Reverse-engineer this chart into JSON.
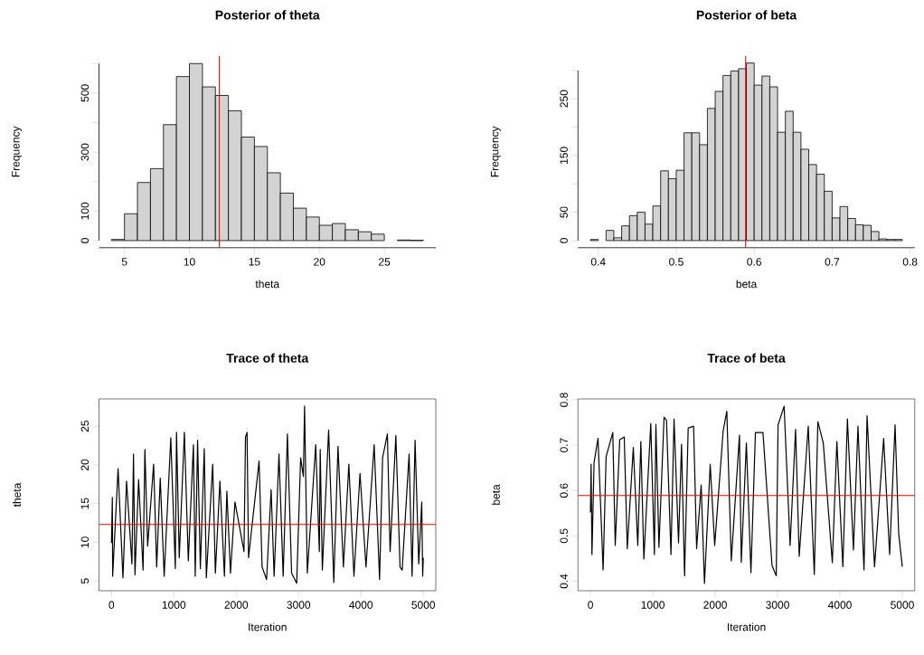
{
  "chart_data": [
    {
      "type": "histogram",
      "title": "Posterior of theta",
      "xlabel": "theta",
      "ylabel": "Frequency",
      "bins": [
        4,
        5,
        6,
        7,
        8,
        9,
        10,
        11,
        12,
        13,
        14,
        15,
        16,
        17,
        18,
        19,
        20,
        21,
        22,
        23,
        24,
        25,
        26,
        27,
        28
      ],
      "values": [
        4,
        91,
        197,
        244,
        393,
        556,
        600,
        521,
        492,
        440,
        351,
        319,
        230,
        161,
        110,
        80,
        52,
        58,
        37,
        30,
        22,
        0,
        2,
        1
      ],
      "color": "#d3d3d3",
      "xlim": [
        3.04,
        28.96
      ],
      "ylim": [
        -24,
        626
      ],
      "xticks": [
        5,
        10,
        15,
        20,
        25
      ],
      "yticks": [
        0,
        100,
        {
          "value": 200,
          "label": null
        },
        300,
        {
          "value": 400,
          "label": null
        },
        500,
        {
          "value": 600,
          "label": null
        }
      ],
      "ref_lines": [
        {
          "axis": "x",
          "value": 12.3,
          "color": "#ff0000"
        }
      ]
    },
    {
      "type": "histogram",
      "title": "Posterior of beta",
      "xlabel": "beta",
      "ylabel": "Frequency",
      "bins": [
        0.39,
        0.4,
        0.41,
        0.42,
        0.43,
        0.44,
        0.45,
        0.46,
        0.47,
        0.48,
        0.49,
        0.5,
        0.51,
        0.52,
        0.53,
        0.54,
        0.55,
        0.56,
        0.57,
        0.58,
        0.59,
        0.6,
        0.61,
        0.62,
        0.63,
        0.64,
        0.65,
        0.66,
        0.67,
        0.68,
        0.69,
        0.7,
        0.71,
        0.72,
        0.73,
        0.74,
        0.75,
        0.76,
        0.77,
        0.78,
        0.79
      ],
      "values": [
        2,
        0,
        18,
        5,
        26,
        44,
        50,
        29,
        61,
        123,
        109,
        124,
        190,
        190,
        169,
        233,
        263,
        291,
        299,
        303,
        313,
        274,
        290,
        271,
        191,
        228,
        191,
        161,
        134,
        117,
        87,
        40,
        60,
        39,
        28,
        27,
        16,
        3,
        2,
        2
      ],
      "color": "#d3d3d3",
      "xlim": [
        0.374,
        0.806
      ],
      "ylim": [
        -12.5,
        325.5
      ],
      "xticks": [
        0.4,
        0.5,
        0.6,
        0.7,
        0.8
      ],
      "yticks": [
        0,
        50,
        {
          "value": 100,
          "label": null
        },
        150,
        {
          "value": 200,
          "label": null
        },
        250,
        {
          "value": 300,
          "label": null
        }
      ],
      "ref_lines": [
        {
          "axis": "x",
          "value": 0.589,
          "color": "#ff0000"
        }
      ]
    },
    {
      "type": "line",
      "title": "Trace of theta",
      "xlabel": "Iteration",
      "ylabel": "theta",
      "color": "#000000",
      "x": [
        0,
        14,
        19,
        106,
        184,
        242,
        328,
        353,
        377,
        435,
        507,
        536,
        580,
        676,
        725,
        782,
        845,
        951,
        1024,
        1043,
        1087,
        1169,
        1232,
        1314,
        1343,
        1381,
        1425,
        1488,
        1521,
        1623,
        1666,
        1739,
        1811,
        1850,
        1908,
        1980,
        2125,
        2149,
        2174,
        2198,
        2367,
        2415,
        2487,
        2560,
        2608,
        2686,
        2753,
        2821,
        2888,
        2970,
        3033,
        3077,
        3096,
        3140,
        3275,
        3333,
        3347,
        3381,
        3482,
        3565,
        3632,
        3719,
        3806,
        3888,
        3985,
        4081,
        4212,
        4299,
        4347,
        4424,
        4468,
        4560,
        4627,
        4661,
        4772,
        4820,
        4868,
        4927,
        4975,
        4990,
        5000
      ],
      "values": [
        9.9,
        15.8,
        5.6,
        19.5,
        5.4,
        17.9,
        7.2,
        21.4,
        5.8,
        18.1,
        6.4,
        22.0,
        9.5,
        20.1,
        6.8,
        18.3,
        5.6,
        23.5,
        6.6,
        24.2,
        8.0,
        24.2,
        7.6,
        22.6,
        5.6,
        23.2,
        6.6,
        22.1,
        5.4,
        20.1,
        6.0,
        17.9,
        5.6,
        16.6,
        6.0,
        15.2,
        8.8,
        23.6,
        24.2,
        8.0,
        20.5,
        6.8,
        5.2,
        16.8,
        5.6,
        21.4,
        5.6,
        24.0,
        6.0,
        4.7,
        20.9,
        18.5,
        27.6,
        6.0,
        22.6,
        8.8,
        22.0,
        6.4,
        24.5,
        4.8,
        22.4,
        6.8,
        20.1,
        5.6,
        18.9,
        6.8,
        22.6,
        5.2,
        20.9,
        24.0,
        8.8,
        23.8,
        6.8,
        6.4,
        21.4,
        5.6,
        23.2,
        7.2,
        15.2,
        5.6,
        8.0
      ],
      "xlim": [
        -200,
        5200
      ],
      "ylim": [
        3.73,
        28.52
      ],
      "xticks": [
        0,
        1000,
        2000,
        3000,
        4000,
        5000
      ],
      "yticks": [
        5,
        10,
        15,
        20,
        25
      ],
      "ref_lines": [
        {
          "axis": "y",
          "value": 12.3,
          "color": "#ff0000"
        }
      ]
    },
    {
      "type": "line",
      "title": "Trace of beta",
      "xlabel": "Iteration",
      "ylabel": "beta",
      "color": "#000000",
      "x": [
        0,
        10,
        24,
        58,
        121,
        203,
        251,
        358,
        397,
        469,
        542,
        590,
        687,
        759,
        808,
        856,
        967,
        1025,
        1049,
        1098,
        1180,
        1219,
        1291,
        1340,
        1412,
        1460,
        1509,
        1567,
        1654,
        1702,
        1775,
        1828,
        1920,
        1992,
        2128,
        2186,
        2258,
        2389,
        2418,
        2500,
        2573,
        2645,
        2766,
        2911,
        2979,
        3008,
        3105,
        3201,
        3289,
        3347,
        3492,
        3589,
        3646,
        3733,
        3878,
        3951,
        4047,
        4120,
        4217,
        4289,
        4386,
        4435,
        4555,
        4701,
        4797,
        4884,
        4942,
        5000
      ],
      "values": [
        0.552,
        0.658,
        0.459,
        0.662,
        0.715,
        0.425,
        0.675,
        0.728,
        0.479,
        0.712,
        0.718,
        0.472,
        0.695,
        0.479,
        0.708,
        0.449,
        0.748,
        0.459,
        0.746,
        0.475,
        0.762,
        0.755,
        0.459,
        0.758,
        0.485,
        0.702,
        0.412,
        0.738,
        0.742,
        0.472,
        0.612,
        0.395,
        0.658,
        0.479,
        0.732,
        0.775,
        0.445,
        0.722,
        0.442,
        0.705,
        0.419,
        0.728,
        0.728,
        0.435,
        0.412,
        0.745,
        0.786,
        0.479,
        0.735,
        0.455,
        0.742,
        0.415,
        0.752,
        0.705,
        0.441,
        0.708,
        0.432,
        0.758,
        0.469,
        0.742,
        0.425,
        0.765,
        0.432,
        0.715,
        0.459,
        0.745,
        0.505,
        0.432
      ],
      "xlim": [
        -200,
        5200
      ],
      "ylim": [
        0.379,
        0.802
      ],
      "xticks": [
        0,
        1000,
        2000,
        3000,
        4000,
        5000
      ],
      "yticks": [
        0.4,
        0.5,
        0.6,
        0.7,
        0.8
      ],
      "ref_lines": [
        {
          "axis": "y",
          "value": 0.589,
          "color": "#ff0000"
        }
      ]
    }
  ]
}
